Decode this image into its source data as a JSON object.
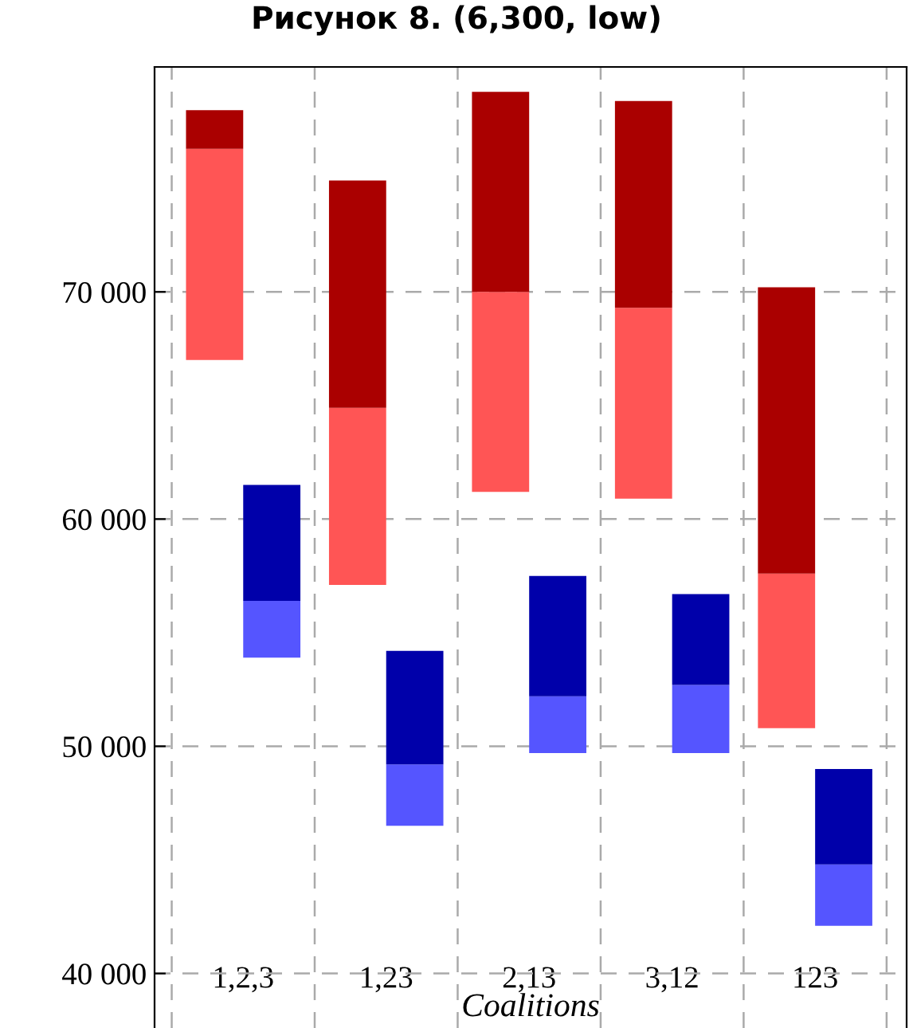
{
  "chart_data": {
    "type": "bar",
    "title": "Рисунок 8. (6,300, low)",
    "xlabel": "Coalitions",
    "categories": [
      "1,2,3",
      "1,23",
      "2,13",
      "3,12",
      "123"
    ],
    "series": [
      {
        "color": "#ff5555",
        "base": [
          67000,
          57100,
          61200,
          60900,
          50800
        ],
        "values": [
          9300,
          7800,
          8800,
          8400,
          6800
        ]
      },
      {
        "color": "#aa0000",
        "base": [
          76300,
          64900,
          70000,
          69300,
          57600
        ],
        "values": [
          1700,
          10000,
          8800,
          9100,
          12600
        ]
      },
      {
        "color": "#5555ff",
        "base": [
          53900,
          46500,
          49700,
          49700,
          42100
        ],
        "values": [
          2500,
          2700,
          2500,
          3000,
          2700
        ]
      },
      {
        "color": "#0000aa",
        "base": [
          56400,
          49200,
          52200,
          52700,
          44800
        ],
        "values": [
          5100,
          5000,
          5300,
          4000,
          4200
        ]
      }
    ],
    "ylim": [
      37600,
      79900
    ],
    "yticks": [
      {
        "value": 40000,
        "label": "40 000"
      },
      {
        "value": 50000,
        "label": "50 000"
      },
      {
        "value": 60000,
        "label": "60 000"
      },
      {
        "value": 70000,
        "label": "70 000"
      }
    ],
    "grid": true
  }
}
